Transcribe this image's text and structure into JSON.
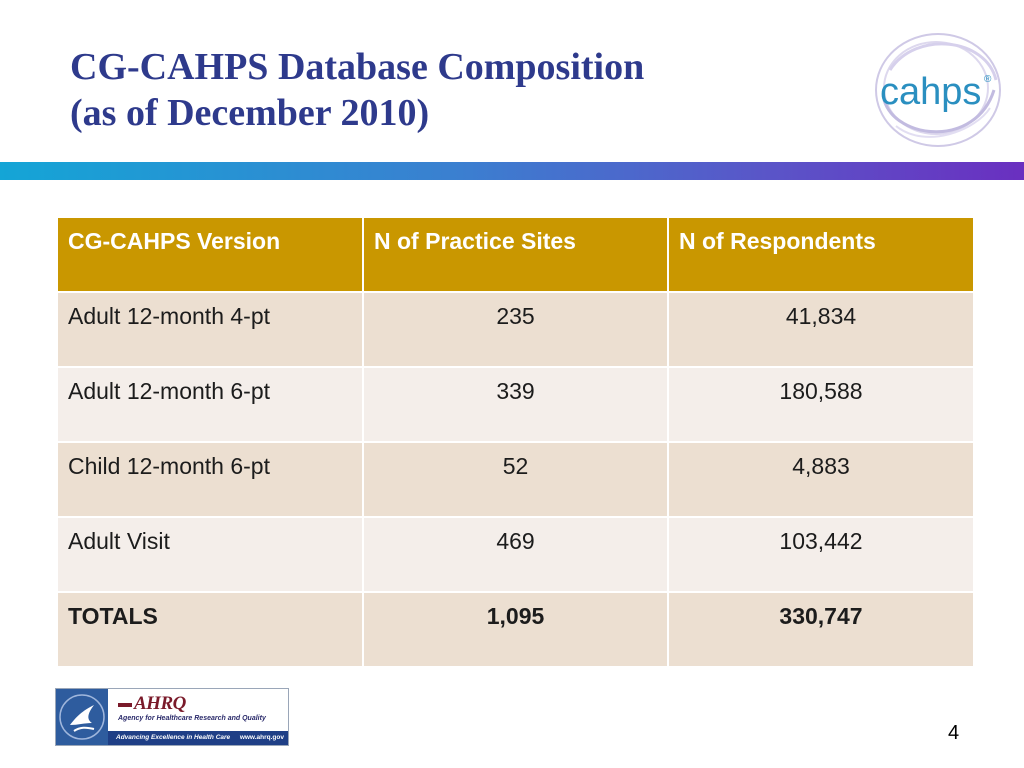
{
  "title": {
    "line1": "CG-CAHPS Database Composition",
    "line2": "(as of December 2010)"
  },
  "logo": {
    "text": "cahps",
    "registered": "®"
  },
  "table": {
    "headers": [
      "CG-CAHPS Version",
      "N of Practice Sites",
      "N of Respondents"
    ],
    "rows": [
      [
        "Adult 12-month 4-pt",
        "235",
        "41,834"
      ],
      [
        "Adult 12-month 6-pt",
        "339",
        "180,588"
      ],
      [
        "Child 12-month 6-pt",
        "52",
        "4,883"
      ],
      [
        "Adult Visit",
        "469",
        "103,442"
      ],
      [
        "TOTALS",
        "1,095",
        "330,747"
      ]
    ]
  },
  "footer": {
    "ahrq_name": "AHRQ",
    "ahrq_full": "Agency for Healthcare Research and Quality",
    "tagline": "Advancing Excellence in Health Care",
    "url": "www.ahrq.gov"
  },
  "page_number": "4",
  "colors": {
    "title": "#2e3a8c",
    "header_fill": "#c99700",
    "row_odd": "#ecdfd1",
    "row_even": "#f4eeea"
  }
}
